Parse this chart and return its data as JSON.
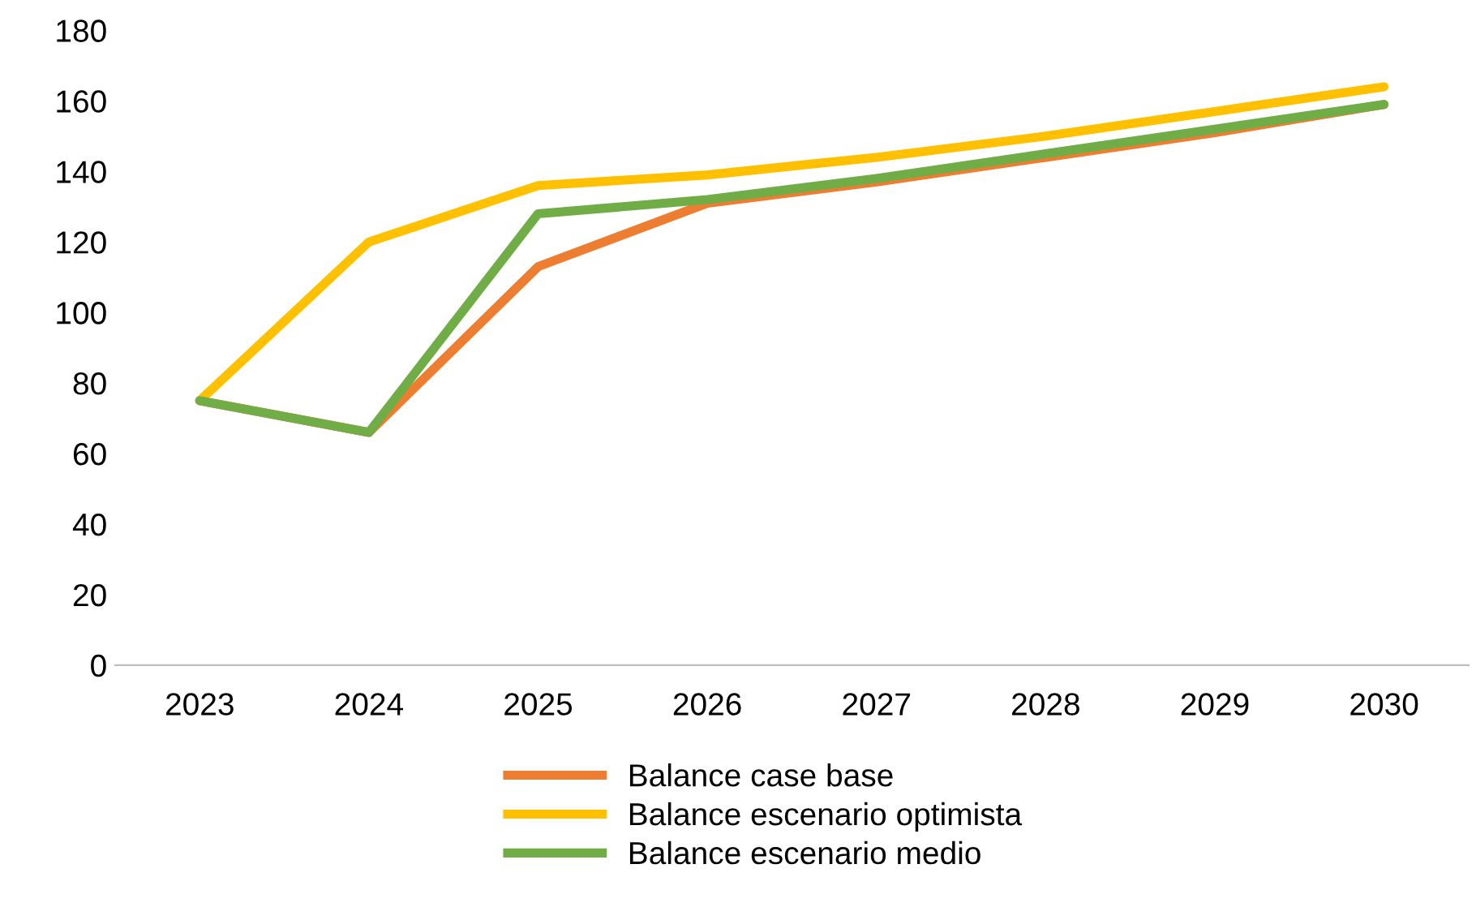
{
  "chart_data": {
    "type": "line",
    "categories": [
      "2023",
      "2024",
      "2025",
      "2026",
      "2027",
      "2028",
      "2029",
      "2030"
    ],
    "series": [
      {
        "name": "Balance case base",
        "color": "#ed7d31",
        "values": [
          75,
          66,
          113,
          131,
          137,
          144,
          151,
          159
        ]
      },
      {
        "name": "Balance escenario optimista",
        "color": "#ffc000",
        "values": [
          75,
          120,
          136,
          139,
          144,
          150,
          157,
          164
        ]
      },
      {
        "name": "Balance escenario medio",
        "color": "#70ad47",
        "values": [
          75,
          66,
          128,
          132,
          138,
          145,
          152,
          159
        ]
      }
    ],
    "ylim": [
      0,
      180
    ],
    "yticks": [
      0,
      20,
      40,
      60,
      80,
      100,
      120,
      140,
      160,
      180
    ],
    "grid": false,
    "legend": "bottom",
    "marker": "none",
    "line_style": "solid"
  }
}
